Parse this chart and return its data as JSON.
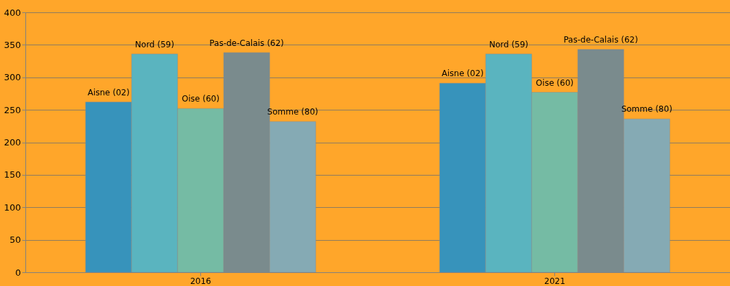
{
  "chart_data": {
    "type": "bar",
    "categories": [
      "2016",
      "2021"
    ],
    "series": [
      {
        "name": "Aisne (02)",
        "color": "#3793bb",
        "values": [
          262,
          291
        ]
      },
      {
        "name": "Nord (59)",
        "color": "#5ab4bf",
        "values": [
          336,
          336
        ]
      },
      {
        "name": "Oise (60)",
        "color": "#75bba4",
        "values": [
          252,
          277
        ]
      },
      {
        "name": "Pas-de-Calais (62)",
        "color": "#7a8b8d",
        "values": [
          338,
          343
        ]
      },
      {
        "name": "Somme (80)",
        "color": "#85aab4",
        "values": [
          232,
          236
        ]
      }
    ],
    "ylim": [
      0,
      400
    ],
    "yticks": [
      0,
      50,
      100,
      150,
      200,
      250,
      300,
      350,
      400
    ],
    "grid": "y",
    "legend": false
  }
}
